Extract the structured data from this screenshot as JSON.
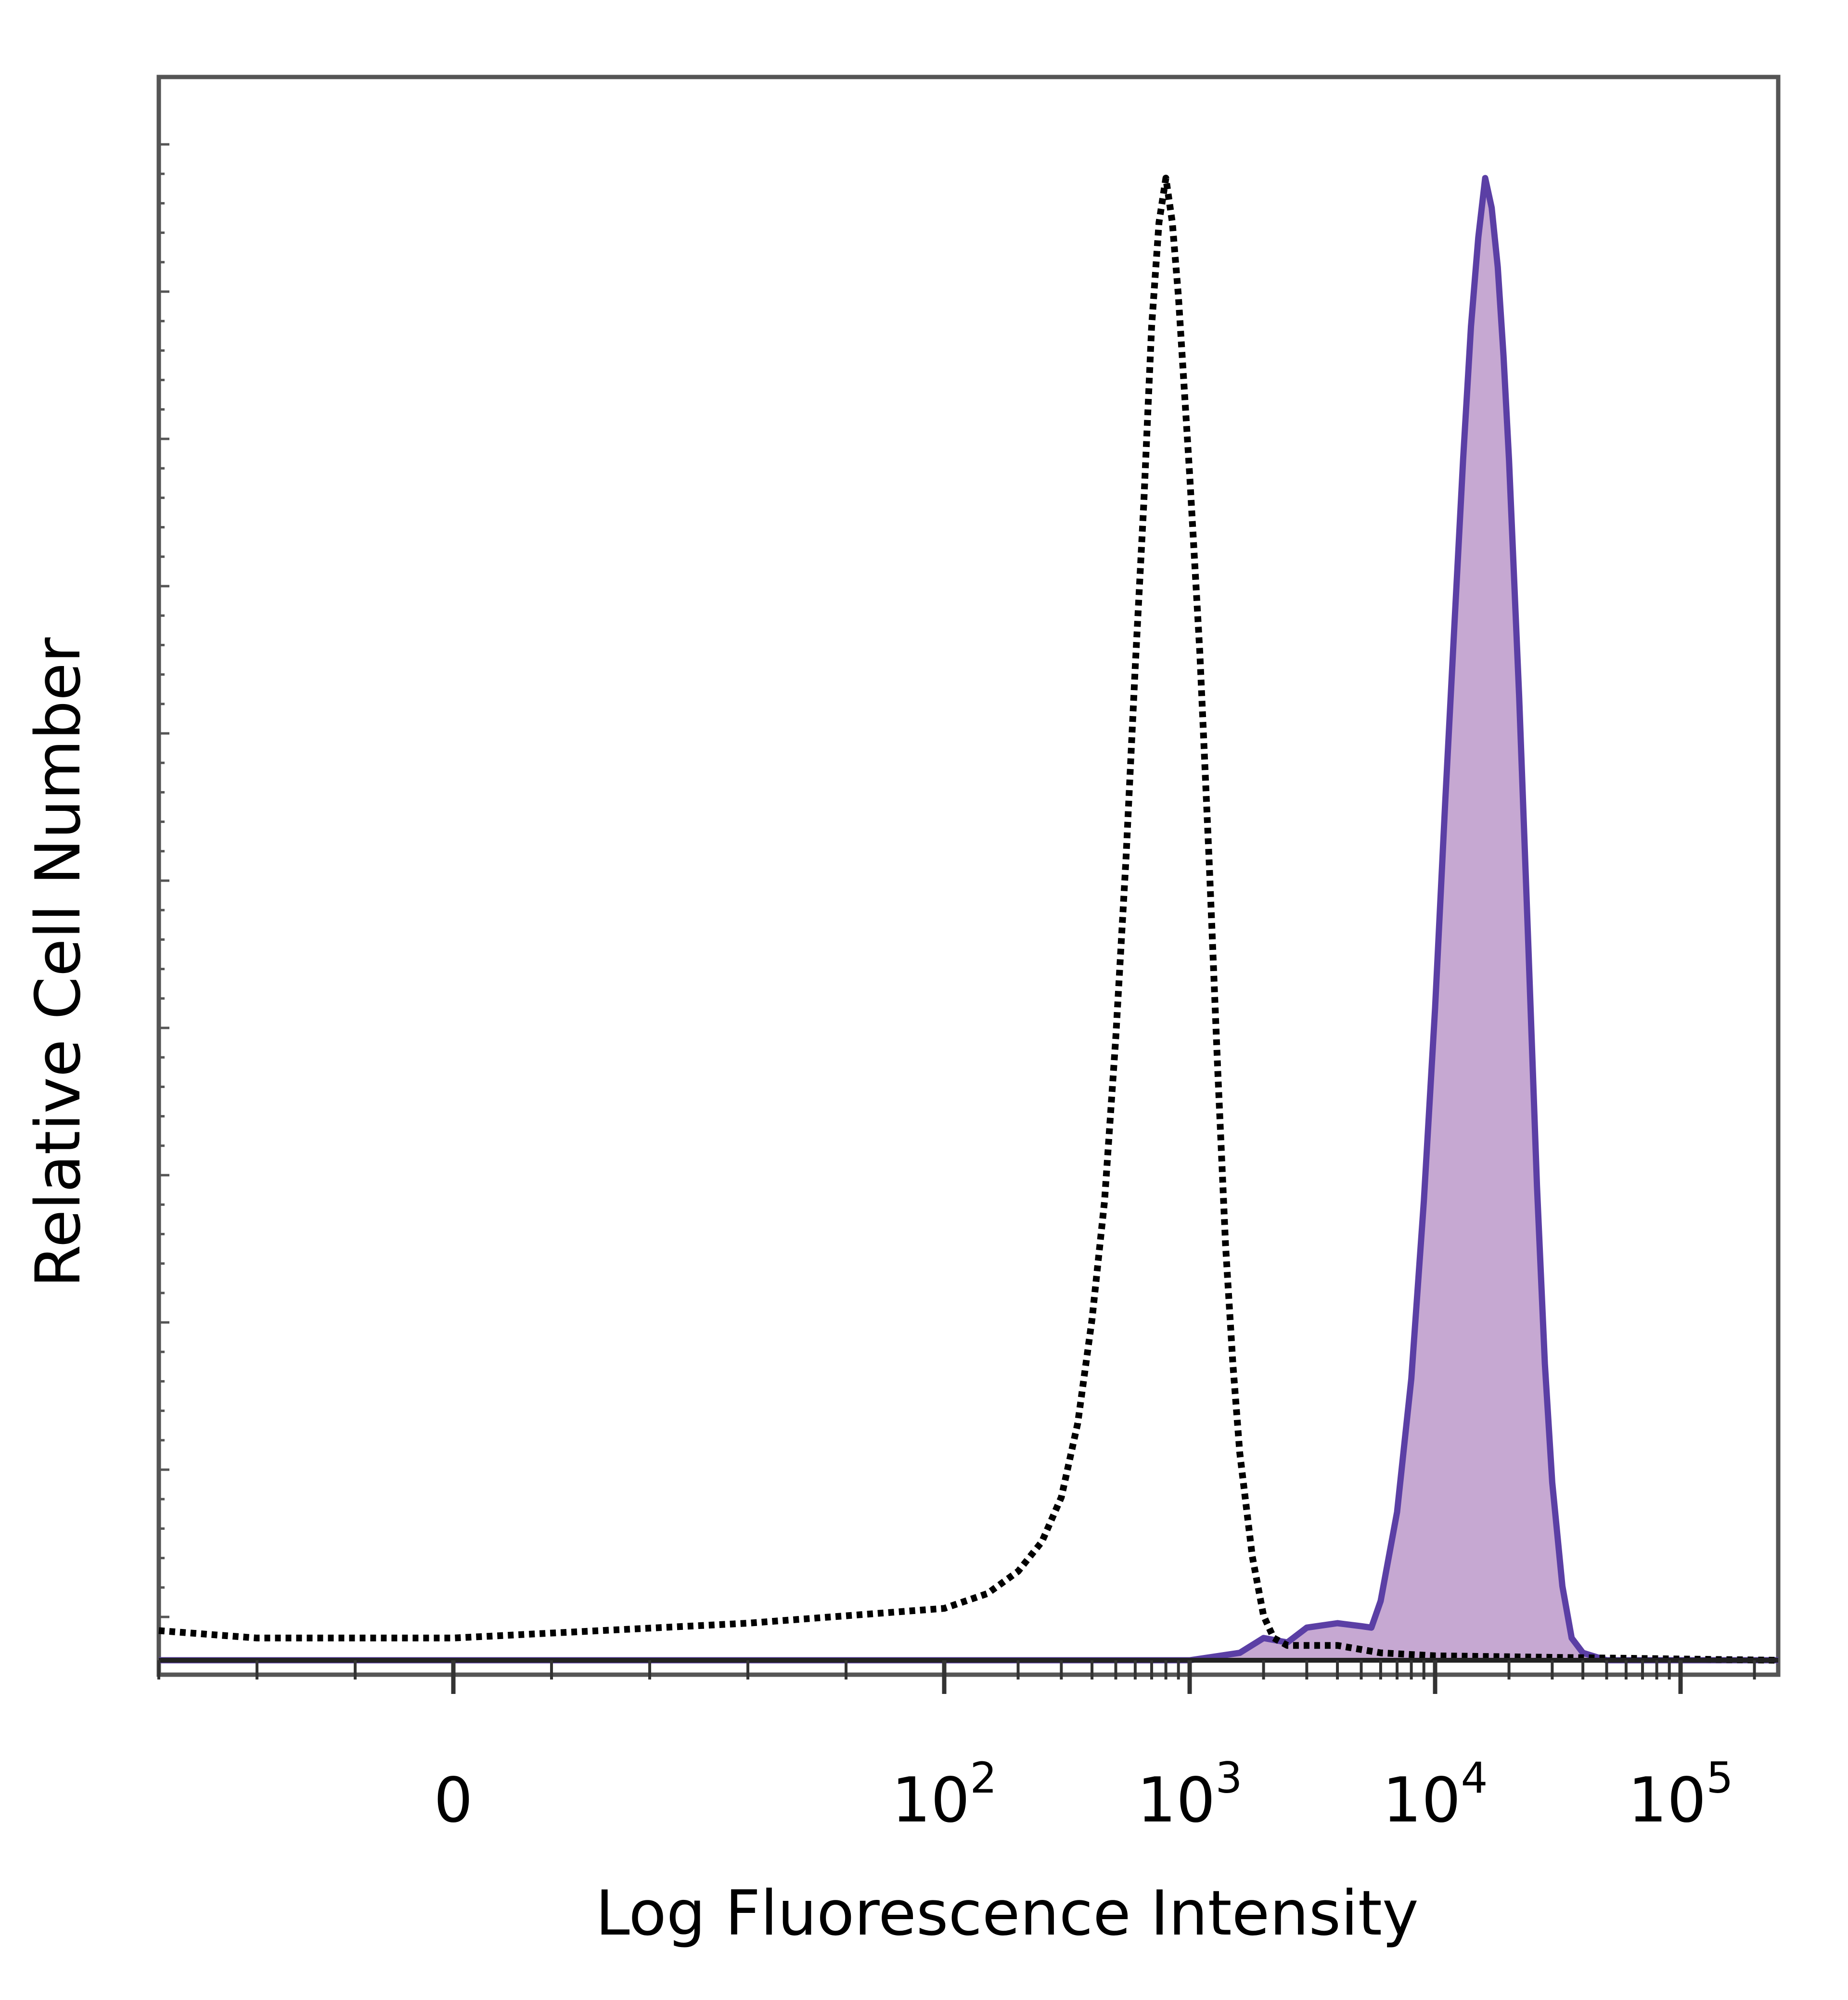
{
  "chart_data": {
    "type": "area",
    "title": "",
    "xlabel": "Log Fluorescence Intensity",
    "ylabel": "Relative Cell Number",
    "x_scale": "biexponential",
    "xlim": [
      -60,
      250000
    ],
    "ylim": [
      0,
      100
    ],
    "grid": false,
    "legend": "none",
    "x_ticks": [
      {
        "value": 0,
        "base": "0",
        "exp": ""
      },
      {
        "value": 100,
        "base": "10",
        "exp": "2"
      },
      {
        "value": 1000,
        "base": "10",
        "exp": "3"
      },
      {
        "value": 10000,
        "base": "10",
        "exp": "4"
      },
      {
        "value": 100000,
        "base": "10",
        "exp": "5"
      }
    ],
    "series": [
      {
        "style": "dotted-outline",
        "color": "#000000",
        "fill": "none",
        "points": [
          [
            -60,
            2
          ],
          [
            -40,
            1.5
          ],
          [
            0,
            1.5
          ],
          [
            30,
            2
          ],
          [
            60,
            2.5
          ],
          [
            100,
            3.5
          ],
          [
            150,
            4.5
          ],
          [
            200,
            6
          ],
          [
            250,
            8
          ],
          [
            300,
            11
          ],
          [
            350,
            16
          ],
          [
            400,
            23
          ],
          [
            450,
            31
          ],
          [
            500,
            42
          ],
          [
            550,
            54
          ],
          [
            600,
            67
          ],
          [
            650,
            78
          ],
          [
            700,
            90
          ],
          [
            750,
            97
          ],
          [
            800,
            100
          ],
          [
            850,
            97
          ],
          [
            900,
            92
          ],
          [
            1000,
            80
          ],
          [
            1100,
            68
          ],
          [
            1200,
            54
          ],
          [
            1300,
            40
          ],
          [
            1400,
            28
          ],
          [
            1500,
            20
          ],
          [
            1600,
            14
          ],
          [
            1800,
            7
          ],
          [
            2000,
            3
          ],
          [
            2200,
            1.5
          ],
          [
            2500,
            1
          ],
          [
            3000,
            1
          ],
          [
            4000,
            1
          ],
          [
            6000,
            0.5
          ],
          [
            10000,
            0.3
          ],
          [
            250000,
            0
          ]
        ]
      },
      {
        "style": "solid-filled",
        "color": "#5b3fa5",
        "fill": "#c6a8d2",
        "points": [
          [
            -60,
            0
          ],
          [
            100,
            0
          ],
          [
            1000,
            0
          ],
          [
            1600,
            0.5
          ],
          [
            2000,
            1.5
          ],
          [
            2500,
            1.2
          ],
          [
            3000,
            2.2
          ],
          [
            4000,
            2.5
          ],
          [
            5000,
            2.3
          ],
          [
            5500,
            2.2
          ],
          [
            6000,
            4
          ],
          [
            7000,
            10
          ],
          [
            8000,
            19
          ],
          [
            9000,
            31
          ],
          [
            10000,
            44
          ],
          [
            11000,
            58
          ],
          [
            12000,
            70
          ],
          [
            13000,
            81
          ],
          [
            14000,
            90
          ],
          [
            15000,
            96
          ],
          [
            16000,
            100
          ],
          [
            17000,
            98
          ],
          [
            18000,
            94
          ],
          [
            19000,
            88
          ],
          [
            20000,
            81
          ],
          [
            22000,
            65
          ],
          [
            24000,
            48
          ],
          [
            26000,
            32
          ],
          [
            28000,
            20
          ],
          [
            30000,
            12
          ],
          [
            33000,
            5
          ],
          [
            36000,
            1.5
          ],
          [
            40000,
            0.5
          ],
          [
            50000,
            0
          ],
          [
            250000,
            0
          ]
        ]
      }
    ]
  }
}
